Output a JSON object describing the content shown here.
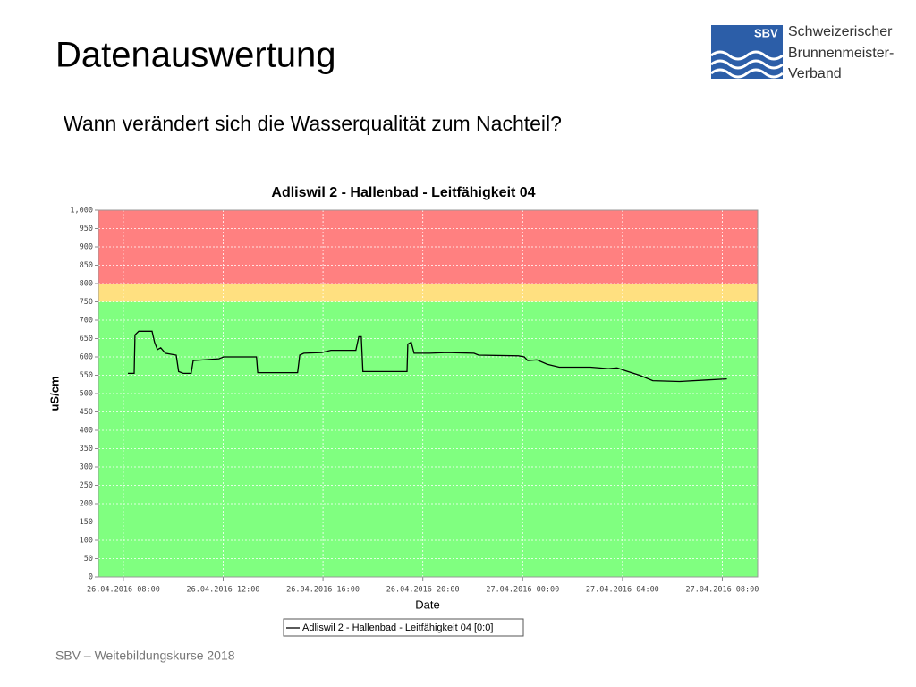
{
  "slide": {
    "title": "Datenauswertung",
    "subtitle": "Wann verändert sich die Wasserqualität zum Nachteil?",
    "footer": "SBV – Weitebildungskurse 2018",
    "logo": {
      "abbr": "SBV",
      "lines": [
        "Schweizerischer",
        "Brunnenmeister-",
        "Verband"
      ]
    }
  },
  "chart_data": {
    "type": "line",
    "title": "Adliswil 2 - Hallenbad - Leitfähigkeit 04",
    "xlabel": "Date",
    "ylabel": "uS/cm",
    "x": [
      "26.04.2016 08:11",
      "26.04.2016 08:26",
      "26.04.2016 08:28",
      "26.04.2016 08:37",
      "26.04.2016 09:09",
      "26.04.2016 09:15",
      "26.04.2016 09:22",
      "26.04.2016 09:30",
      "26.04.2016 09:41",
      "26.04.2016 10:07",
      "26.04.2016 10:13",
      "26.04.2016 10:24",
      "26.04.2016 10:43",
      "26.04.2016 10:48",
      "26.04.2016 11:50",
      "26.04.2016 12:01",
      "26.04.2016 13:20",
      "26.04.2016 13:23",
      "26.04.2016 14:59",
      "26.04.2016 15:04",
      "26.04.2016 15:14",
      "26.04.2016 15:57",
      "26.04.2016 16:19",
      "26.04.2016 17:19",
      "26.04.2016 17:26",
      "26.04.2016 17:32",
      "26.04.2016 17:36",
      "26.04.2016 19:22",
      "26.04.2016 19:24",
      "26.04.2016 19:32",
      "26.04.2016 19:39",
      "26.04.2016 20:16",
      "26.04.2016 20:58",
      "26.04.2016 22:03",
      "26.04.2016 22:14",
      "26.04.2016 23:50",
      "27.04.2016 00:04",
      "27.04.2016 00:12",
      "27.04.2016 00:34",
      "27.04.2016 00:59",
      "27.04.2016 01:28",
      "27.04.2016 02:43",
      "27.04.2016 03:26",
      "27.04.2016 03:47",
      "27.04.2016 04:08",
      "27.04.2016 04:41",
      "27.04.2016 05:13",
      "27.04.2016 06:17",
      "27.04.2016 07:22",
      "27.04.2016 08:11"
    ],
    "series": [
      {
        "name": "Adliswil 2 - Hallenbad - Leitfähigkeit 04 [0:0]",
        "color": "#000000",
        "values": [
          555,
          555,
          660,
          670,
          670,
          640,
          620,
          625,
          610,
          605,
          560,
          555,
          555,
          590,
          595,
          600,
          600,
          557,
          557,
          605,
          610,
          612,
          618,
          618,
          655,
          655,
          560,
          560,
          635,
          640,
          610,
          610,
          612,
          610,
          605,
          603,
          600,
          590,
          592,
          580,
          572,
          572,
          568,
          570,
          562,
          550,
          535,
          533,
          537,
          540
        ]
      }
    ],
    "bands": [
      {
        "from": 0,
        "to": 750,
        "color": "#80ff80"
      },
      {
        "from": 750,
        "to": 800,
        "color": "#ffe080"
      },
      {
        "from": 800,
        "to": 1000,
        "color": "#ff8080"
      }
    ],
    "xlim": [
      "26.04.2016 07:00",
      "27.04.2016 09:25"
    ],
    "xticks": [
      "26.04.2016 08:00",
      "26.04.2016 12:00",
      "26.04.2016 16:00",
      "26.04.2016 20:00",
      "27.04.2016 00:00",
      "27.04.2016 04:00",
      "27.04.2016 08:00"
    ],
    "ylim": [
      0,
      1000
    ],
    "yticks": [
      0,
      50,
      100,
      150,
      200,
      250,
      300,
      350,
      400,
      450,
      500,
      550,
      600,
      650,
      700,
      750,
      800,
      850,
      900,
      950,
      {
        "value": 1000,
        "label": "1,000"
      }
    ],
    "grid": true
  }
}
